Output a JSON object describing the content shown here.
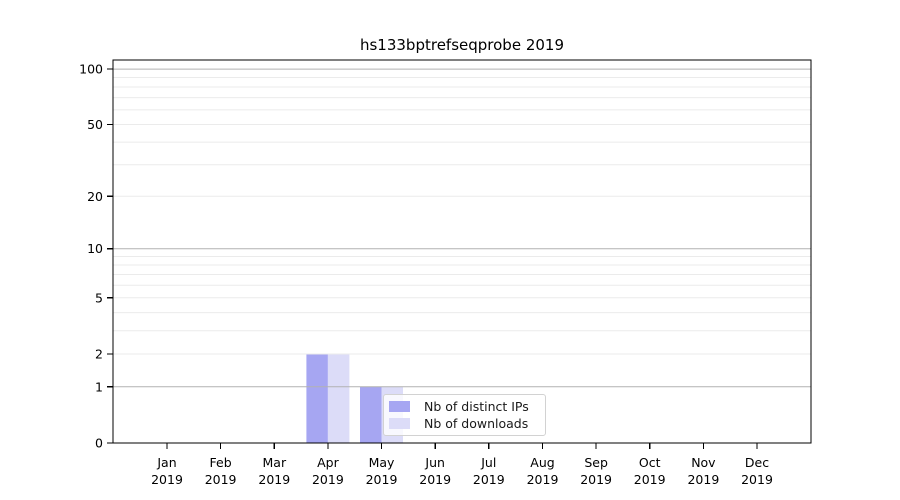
{
  "figure": {
    "background": "#ffffff"
  },
  "chart_data": {
    "type": "bar",
    "title": "hs133bptrefseqprobe 2019",
    "categories": [
      "Jan 2019",
      "Feb 2019",
      "Mar 2019",
      "Apr 2019",
      "May 2019",
      "Jun 2019",
      "Jul 2019",
      "Aug 2019",
      "Sep 2019",
      "Oct 2019",
      "Nov 2019",
      "Dec 2019"
    ],
    "x_tick_months": [
      "Jan",
      "Feb",
      "Mar",
      "Apr",
      "May",
      "Jun",
      "Jul",
      "Aug",
      "Sep",
      "Oct",
      "Nov",
      "Dec"
    ],
    "x_tick_year": "2019",
    "series": [
      {
        "name": "Nb of distinct IPs",
        "color": "#a6a6f2",
        "values": [
          0,
          0,
          0,
          2,
          1,
          0,
          0,
          0,
          0,
          0,
          0,
          0
        ]
      },
      {
        "name": "Nb of downloads",
        "color": "#dcdcf8",
        "values": [
          0,
          0,
          0,
          2,
          1,
          0,
          0,
          0,
          0,
          0,
          0,
          0
        ]
      }
    ],
    "xlabel": "",
    "ylabel": "",
    "y_scale": "log1p",
    "y_ticks": [
      0,
      1,
      2,
      5,
      10,
      20,
      50,
      100
    ],
    "y_major_gridlines": [
      1,
      10,
      100
    ],
    "y_minor_gridlines": [
      2,
      3,
      4,
      5,
      6,
      7,
      8,
      9,
      20,
      30,
      40,
      50,
      60,
      70,
      80,
      90
    ],
    "ylim": [
      0,
      112
    ],
    "grid": "both",
    "legend_position": "inside lower-center",
    "legend_labels": [
      "Nb of distinct IPs",
      "Nb of downloads"
    ]
  },
  "style_colors": {
    "grid_major": "#b2b2b2",
    "grid_minor": "#ebebeb",
    "axis_spine": "#000000",
    "tick_label": "#000000",
    "legend_border": "#d2d2d2"
  }
}
